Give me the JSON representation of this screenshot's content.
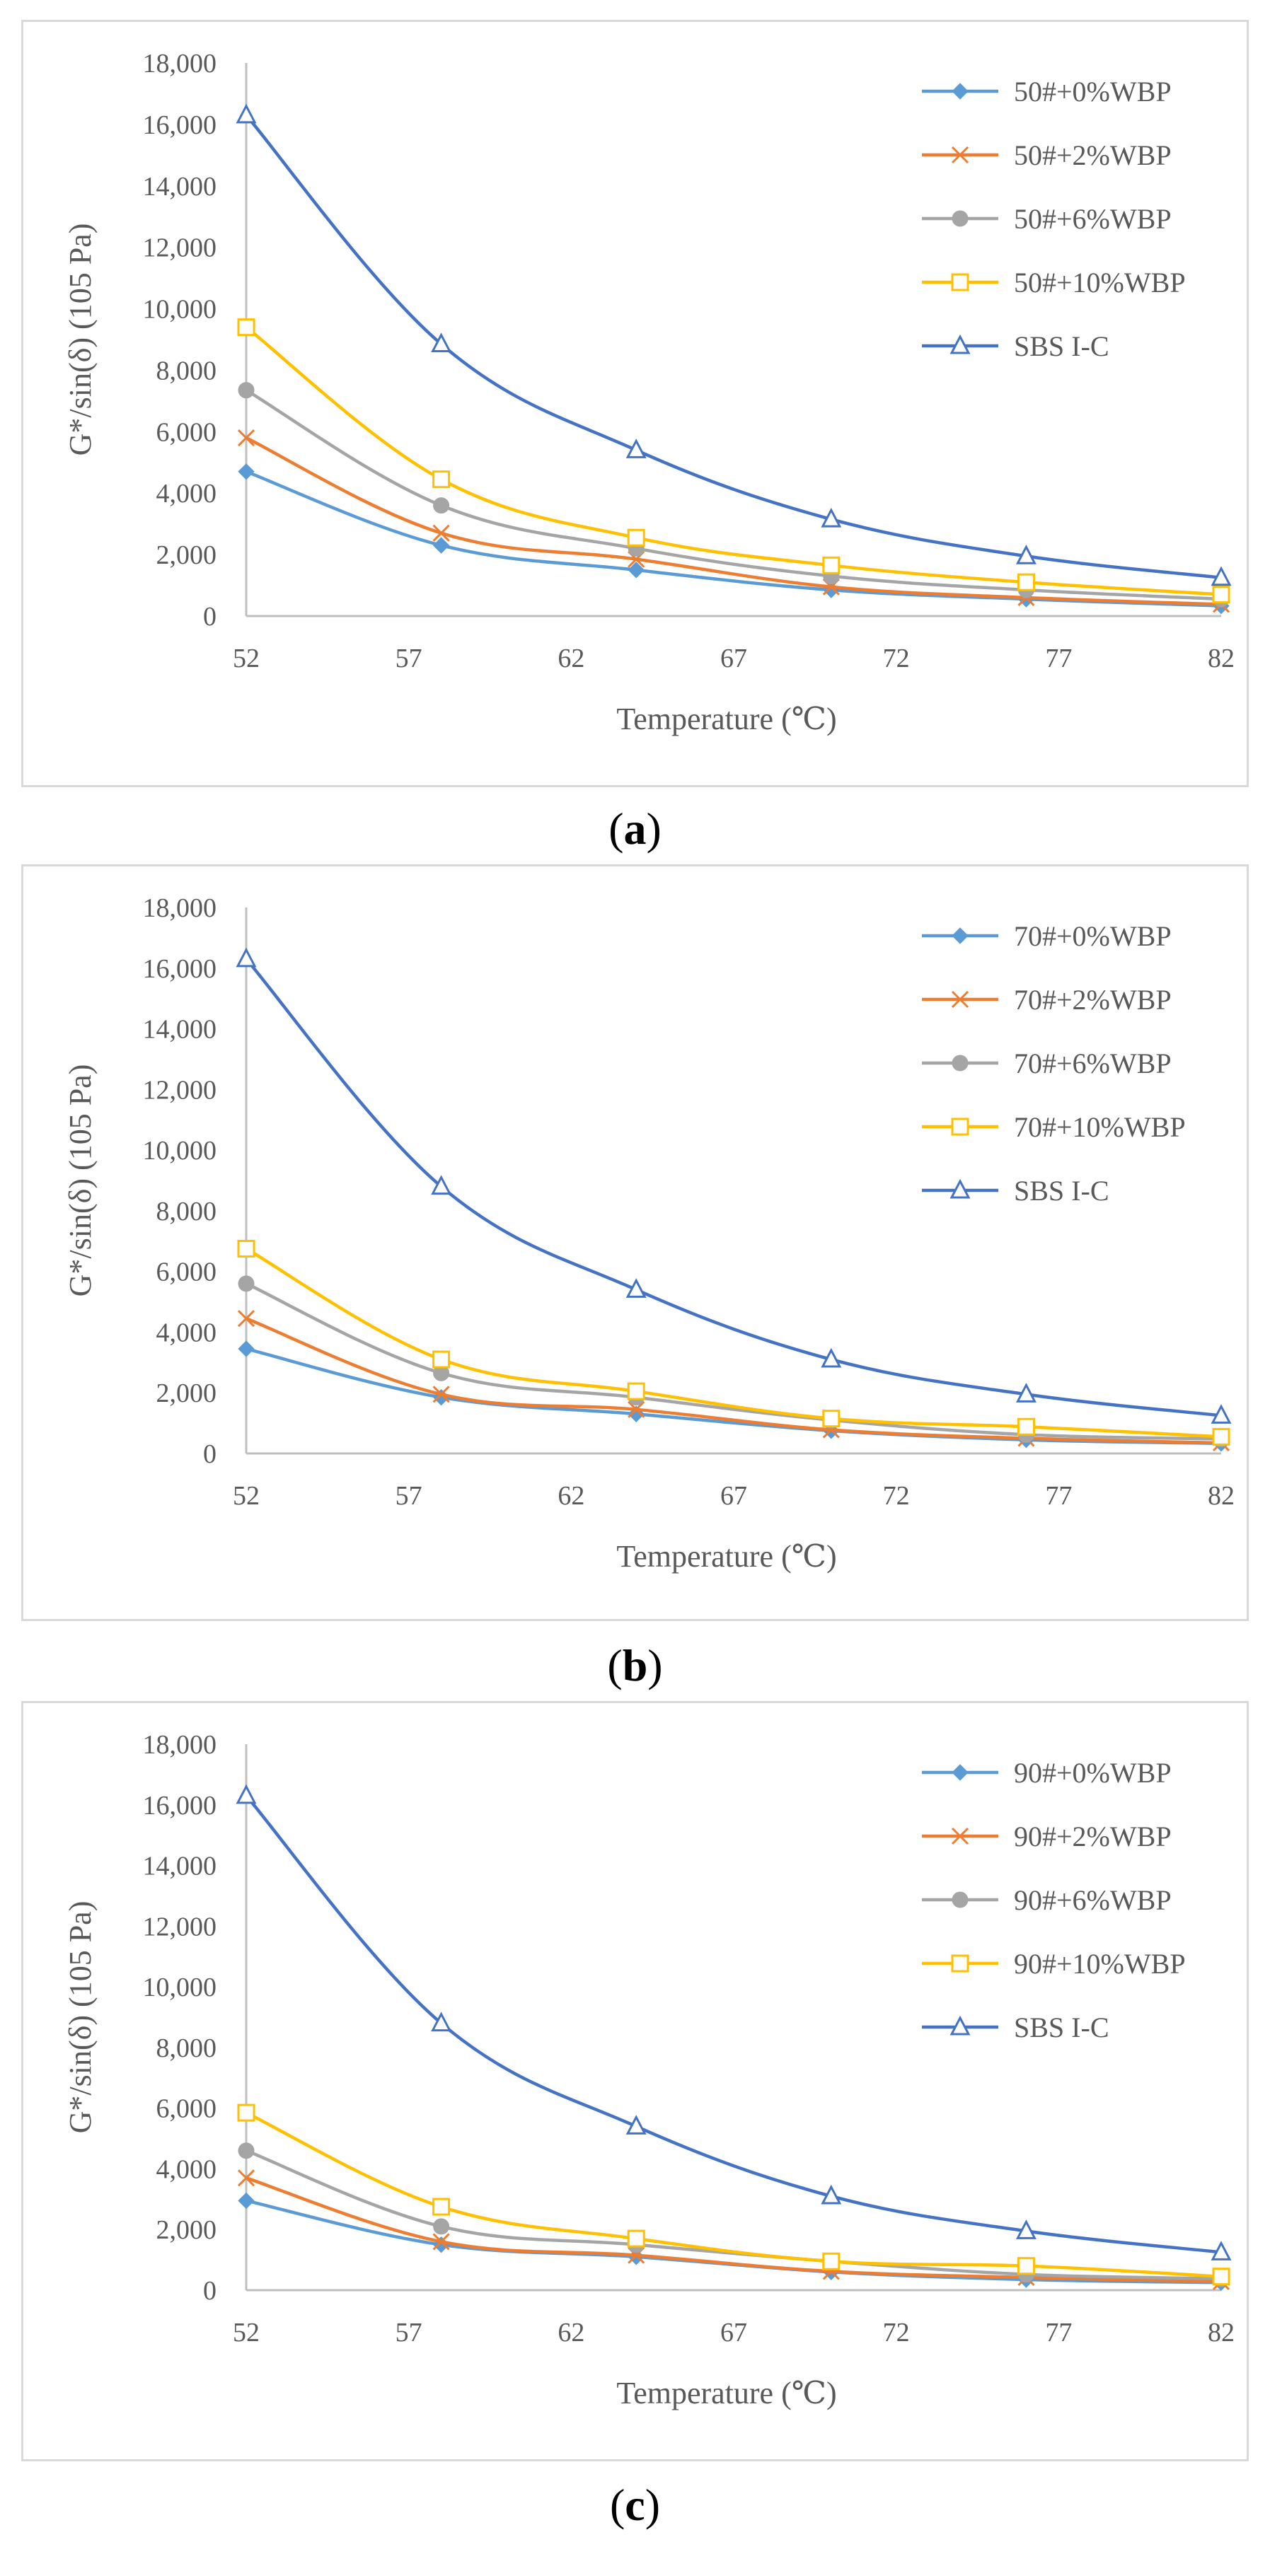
{
  "chart_data": [
    {
      "type": "line",
      "panel_label": "a",
      "ylabel": "G*/sin(δ) (105 Pa)",
      "xlabel": "Temperature (℃)",
      "xlim": [
        52,
        82
      ],
      "ylim": [
        0,
        18000
      ],
      "xticks": [
        "52",
        "57",
        "62",
        "67",
        "72",
        "77",
        "82"
      ],
      "yticks": [
        "0",
        "2,000",
        "4,000",
        "6,000",
        "8,000",
        "10,000",
        "12,000",
        "14,000",
        "16,000",
        "18,000"
      ],
      "x": [
        52,
        58,
        64,
        70,
        76,
        82
      ],
      "legend_position": "top-right",
      "grid": false,
      "series": [
        {
          "name": "50#+0%WBP",
          "color": "#5b9bd5",
          "marker": "diamond",
          "values": [
            4700,
            2300,
            1500,
            850,
            550,
            330
          ]
        },
        {
          "name": "50#+2%WBP",
          "color": "#ed7d31",
          "marker": "x",
          "values": [
            5800,
            2700,
            1850,
            950,
            600,
            380
          ]
        },
        {
          "name": "50#+6%WBP",
          "color": "#a5a5a5",
          "marker": "circle",
          "values": [
            7350,
            3600,
            2200,
            1300,
            850,
            550
          ]
        },
        {
          "name": "50#+10%WBP",
          "color": "#ffc000",
          "marker": "square",
          "values": [
            9400,
            4450,
            2550,
            1650,
            1100,
            700
          ]
        },
        {
          "name": "SBS I-C",
          "color": "#4472c4",
          "marker": "triangle",
          "values": [
            16300,
            8850,
            5400,
            3150,
            1950,
            1250
          ]
        }
      ]
    },
    {
      "type": "line",
      "panel_label": "b",
      "ylabel": "G*/sin(δ) (105 Pa)",
      "xlabel": "Temperature (℃)",
      "xlim": [
        52,
        82
      ],
      "ylim": [
        0,
        18000
      ],
      "xticks": [
        "52",
        "57",
        "62",
        "67",
        "72",
        "77",
        "82"
      ],
      "yticks": [
        "0",
        "2,000",
        "4,000",
        "6,000",
        "8,000",
        "10,000",
        "12,000",
        "14,000",
        "16,000",
        "18,000"
      ],
      "x": [
        52,
        58,
        64,
        70,
        76,
        82
      ],
      "legend_position": "top-right",
      "grid": false,
      "series": [
        {
          "name": "70#+0%WBP",
          "color": "#5b9bd5",
          "marker": "diamond",
          "values": [
            3450,
            1850,
            1300,
            750,
            450,
            330
          ]
        },
        {
          "name": "70#+2%WBP",
          "color": "#ed7d31",
          "marker": "x",
          "values": [
            4450,
            1950,
            1450,
            780,
            500,
            350
          ]
        },
        {
          "name": "70#+6%WBP",
          "color": "#a5a5a5",
          "marker": "circle",
          "values": [
            5600,
            2650,
            1850,
            1100,
            620,
            480
          ]
        },
        {
          "name": "70#+10%WBP",
          "color": "#ffc000",
          "marker": "square",
          "values": [
            6750,
            3100,
            2050,
            1150,
            880,
            550
          ]
        },
        {
          "name": "SBS I-C",
          "color": "#4472c4",
          "marker": "triangle",
          "values": [
            16300,
            8800,
            5400,
            3100,
            1950,
            1250
          ]
        }
      ]
    },
    {
      "type": "line",
      "panel_label": "c",
      "ylabel": "G*/sin(δ) (105 Pa)",
      "xlabel": "Temperature (℃)",
      "xlim": [
        52,
        82
      ],
      "ylim": [
        0,
        18000
      ],
      "xticks": [
        "52",
        "57",
        "62",
        "67",
        "72",
        "77",
        "82"
      ],
      "yticks": [
        "0",
        "2,000",
        "4,000",
        "6,000",
        "8,000",
        "10,000",
        "12,000",
        "14,000",
        "16,000",
        "18,000"
      ],
      "x": [
        52,
        58,
        64,
        70,
        76,
        82
      ],
      "legend_position": "top-right",
      "grid": false,
      "series": [
        {
          "name": "90#+0%WBP",
          "color": "#5b9bd5",
          "marker": "diamond",
          "values": [
            2950,
            1500,
            1100,
            600,
            350,
            250
          ]
        },
        {
          "name": "90#+2%WBP",
          "color": "#ed7d31",
          "marker": "x",
          "values": [
            3700,
            1600,
            1150,
            620,
            420,
            280
          ]
        },
        {
          "name": "90#+6%WBP",
          "color": "#a5a5a5",
          "marker": "circle",
          "values": [
            4600,
            2100,
            1500,
            950,
            520,
            380
          ]
        },
        {
          "name": "90#+10%WBP",
          "color": "#ffc000",
          "marker": "square",
          "values": [
            5850,
            2750,
            1700,
            950,
            800,
            450
          ]
        },
        {
          "name": "SBS I-C",
          "color": "#4472c4",
          "marker": "triangle",
          "values": [
            16300,
            8800,
            5400,
            3100,
            1950,
            1250
          ]
        }
      ]
    }
  ]
}
